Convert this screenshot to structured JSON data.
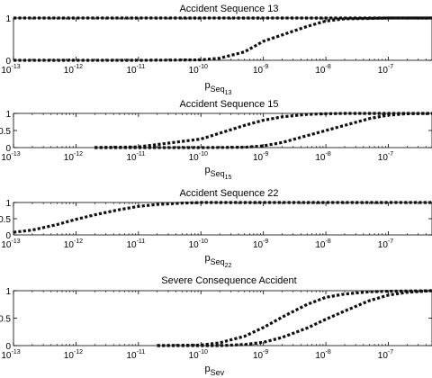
{
  "chart_data": [
    {
      "type": "line",
      "title": "Accident Sequence 13",
      "xlabel": {
        "base": "p",
        "sub": "Seq",
        "subsub": "13"
      },
      "x_scale": "log",
      "xlim": [
        1e-13,
        5e-07
      ],
      "ylim": [
        0,
        1
      ],
      "x_ticks": [
        {
          "mantissa": "10",
          "exp": "-13",
          "value": 1e-13
        },
        {
          "mantissa": "10",
          "exp": "-12",
          "value": 1e-12
        },
        {
          "mantissa": "10",
          "exp": "-11",
          "value": 1e-11
        },
        {
          "mantissa": "10",
          "exp": "-10",
          "value": 1e-10
        },
        {
          "mantissa": "10",
          "exp": "-9",
          "value": 1e-09
        },
        {
          "mantissa": "10",
          "exp": "-8",
          "value": 1e-08
        },
        {
          "mantissa": "10",
          "exp": "-7",
          "value": 1e-07
        }
      ],
      "y_ticks": [
        "0",
        "1"
      ],
      "series": [
        {
          "x": [
            1e-13,
            1e-12,
            1e-11,
            1e-10,
            1e-09,
            1e-08,
            5e-07
          ],
          "y": [
            1,
            1,
            1,
            1,
            1,
            1,
            1
          ]
        },
        {
          "x": [
            1e-13,
            1e-11,
            1e-10,
            2e-10,
            5e-10,
            1e-09,
            2e-09,
            5e-09,
            1e-08,
            2e-08,
            5e-08,
            1e-07,
            5e-07
          ],
          "y": [
            0,
            0,
            0.01,
            0.05,
            0.2,
            0.45,
            0.6,
            0.8,
            0.93,
            0.98,
            0.99,
            1,
            1
          ]
        }
      ]
    },
    {
      "type": "line",
      "title": "Accident Sequence 15",
      "xlabel": {
        "base": "p",
        "sub": "Seq",
        "subsub": "15"
      },
      "x_scale": "log",
      "xlim": [
        1e-13,
        5e-07
      ],
      "ylim": [
        0,
        1
      ],
      "x_ticks": [
        {
          "mantissa": "10",
          "exp": "-13",
          "value": 1e-13
        },
        {
          "mantissa": "10",
          "exp": "-12",
          "value": 1e-12
        },
        {
          "mantissa": "10",
          "exp": "-11",
          "value": 1e-11
        },
        {
          "mantissa": "10",
          "exp": "-10",
          "value": 1e-10
        },
        {
          "mantissa": "10",
          "exp": "-9",
          "value": 1e-09
        },
        {
          "mantissa": "10",
          "exp": "-8",
          "value": 1e-08
        },
        {
          "mantissa": "10",
          "exp": "-7",
          "value": 1e-07
        }
      ],
      "y_ticks": [
        "0",
        "0.5",
        "1"
      ],
      "series": [
        {
          "x": [
            2e-12,
            1e-11,
            1e-10,
            2e-10,
            5e-10,
            1e-09,
            2e-09,
            5e-09,
            1e-08,
            2e-08,
            5e-08,
            1e-07,
            5e-07
          ],
          "y": [
            0,
            0.02,
            0.25,
            0.42,
            0.65,
            0.8,
            0.9,
            0.97,
            0.99,
            1,
            1,
            1,
            1
          ]
        },
        {
          "x": [
            2e-12,
            1e-10,
            5e-10,
            1e-09,
            2e-09,
            5e-09,
            1e-08,
            2e-08,
            5e-08,
            1e-07,
            2e-07,
            5e-07
          ],
          "y": [
            0,
            0,
            0.01,
            0.05,
            0.15,
            0.35,
            0.5,
            0.65,
            0.85,
            0.95,
            0.99,
            1
          ]
        }
      ]
    },
    {
      "type": "line",
      "title": "Accident Sequence 22",
      "xlabel": {
        "base": "p",
        "sub": "Seq",
        "subsub": "22"
      },
      "x_scale": "log",
      "xlim": [
        1e-13,
        5e-07
      ],
      "ylim": [
        0,
        1
      ],
      "x_ticks": [
        {
          "mantissa": "10",
          "exp": "-13",
          "value": 1e-13
        },
        {
          "mantissa": "10",
          "exp": "-12",
          "value": 1e-12
        },
        {
          "mantissa": "10",
          "exp": "-11",
          "value": 1e-11
        },
        {
          "mantissa": "10",
          "exp": "-10",
          "value": 1e-10
        },
        {
          "mantissa": "10",
          "exp": "-9",
          "value": 1e-09
        },
        {
          "mantissa": "10",
          "exp": "-8",
          "value": 1e-08
        },
        {
          "mantissa": "10",
          "exp": "-7",
          "value": 1e-07
        }
      ],
      "y_ticks": [
        "0",
        "0.5",
        "1"
      ],
      "series": [
        {
          "x": [
            1e-13,
            2e-13,
            5e-13,
            1e-12,
            2e-12,
            5e-12,
            1e-11,
            2e-11,
            5e-11,
            1e-10,
            1e-09,
            1e-08,
            5e-07
          ],
          "y": [
            0.08,
            0.15,
            0.32,
            0.48,
            0.62,
            0.78,
            0.88,
            0.94,
            0.98,
            1,
            1,
            1,
            1
          ]
        }
      ]
    },
    {
      "type": "line",
      "title": "Severe Consequence Accident",
      "xlabel": {
        "base": "p",
        "sub": "Sev",
        "subsub": ""
      },
      "x_scale": "log",
      "xlim": [
        1e-13,
        5e-07
      ],
      "ylim": [
        0,
        1
      ],
      "x_ticks": [
        {
          "mantissa": "10",
          "exp": "-13",
          "value": 1e-13
        },
        {
          "mantissa": "10",
          "exp": "-12",
          "value": 1e-12
        },
        {
          "mantissa": "10",
          "exp": "-11",
          "value": 1e-11
        },
        {
          "mantissa": "10",
          "exp": "-10",
          "value": 1e-10
        },
        {
          "mantissa": "10",
          "exp": "-9",
          "value": 1e-09
        },
        {
          "mantissa": "10",
          "exp": "-8",
          "value": 1e-08
        },
        {
          "mantissa": "10",
          "exp": "-7",
          "value": 1e-07
        }
      ],
      "y_ticks": [
        "0",
        "0.5",
        "1"
      ],
      "series": [
        {
          "x": [
            2e-11,
            1e-10,
            2e-10,
            5e-10,
            1e-09,
            2e-09,
            5e-09,
            1e-08,
            2e-08,
            5e-08,
            1e-07,
            5e-07
          ],
          "y": [
            0,
            0.01,
            0.05,
            0.17,
            0.33,
            0.52,
            0.75,
            0.88,
            0.94,
            0.98,
            0.99,
            1
          ]
        },
        {
          "x": [
            2e-11,
            2e-10,
            5e-10,
            1e-09,
            2e-09,
            5e-09,
            1e-08,
            2e-08,
            5e-08,
            1e-07,
            2e-07,
            5e-07
          ],
          "y": [
            0,
            0,
            0.02,
            0.06,
            0.15,
            0.32,
            0.48,
            0.63,
            0.82,
            0.92,
            0.97,
            1
          ]
        }
      ]
    }
  ]
}
